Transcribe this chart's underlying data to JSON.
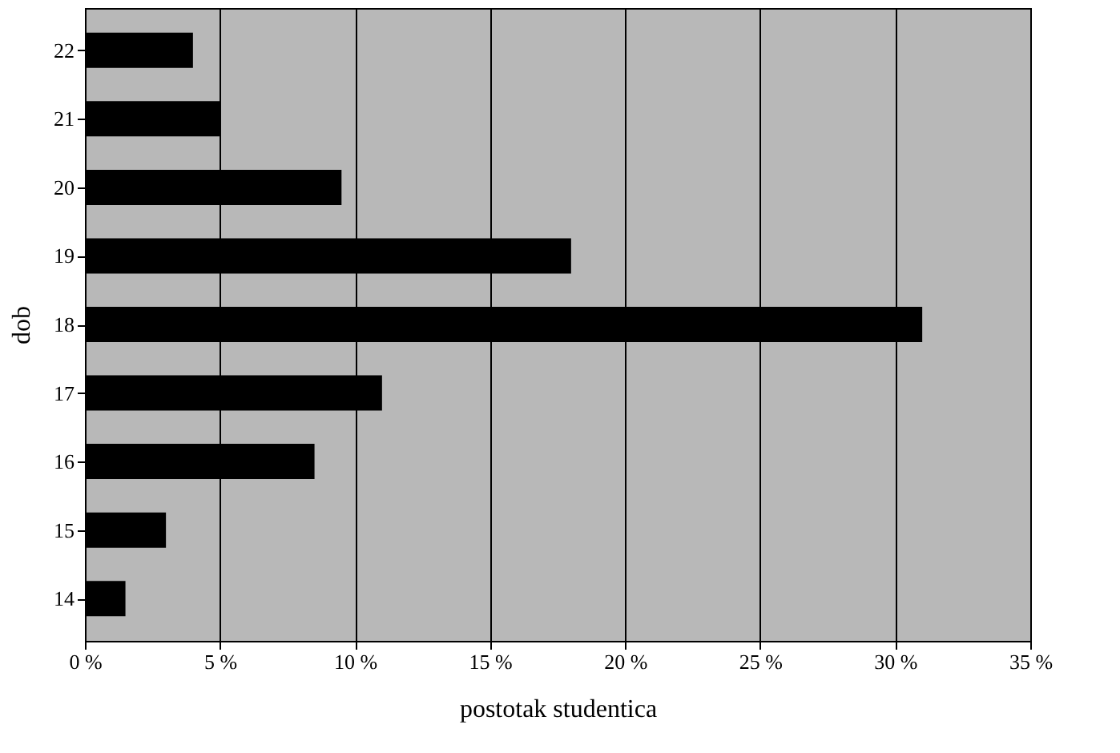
{
  "chart_data": {
    "type": "bar",
    "orientation": "horizontal",
    "xlabel": "postotak studentica",
    "ylabel": "dob",
    "categories": [
      "22",
      "21",
      "20",
      "19",
      "18",
      "17",
      "16",
      "15",
      "14"
    ],
    "values": [
      4,
      5,
      9.5,
      18,
      31,
      11,
      8.5,
      3,
      1.5
    ],
    "color": "#000000",
    "xlim": [
      0,
      35
    ],
    "xticks": [
      {
        "value": 0,
        "label": "0 %"
      },
      {
        "value": 5,
        "label": "5 %"
      },
      {
        "value": 10,
        "label": "10 %"
      },
      {
        "value": 15,
        "label": "15 %"
      },
      {
        "value": 20,
        "label": "20 %"
      },
      {
        "value": 25,
        "label": "25 %"
      },
      {
        "value": 30,
        "label": "30 %"
      },
      {
        "value": 35,
        "label": "35 %"
      }
    ],
    "grid": "x"
  }
}
